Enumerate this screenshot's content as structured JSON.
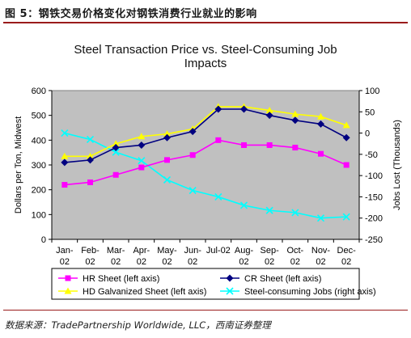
{
  "header": {
    "title": "图 5：钢铁交易价格变化对钢铁消费行业就业的影响"
  },
  "footer": {
    "source": "数据来源：TradePartnership Worldwide, LLC，西南证券整理"
  },
  "colors": {
    "plot_bg": "#c0c0c0",
    "hr_sheet": "#ff00ff",
    "cr_sheet": "#000080",
    "hd_galvanized": "#ffff00",
    "jobs": "#00ffff"
  },
  "chart_data": {
    "type": "line",
    "title_lines": [
      "Steel Transaction Price vs. Steel-Consuming Job",
      "Impacts"
    ],
    "categories": [
      [
        "Jan-",
        "02"
      ],
      [
        "Feb-",
        "02"
      ],
      [
        "Mar-",
        "02"
      ],
      [
        "Apr-",
        "02"
      ],
      [
        "May-",
        "02"
      ],
      [
        "Jun-",
        "02"
      ],
      [
        "Jul-02",
        ""
      ],
      [
        "Aug-",
        "02"
      ],
      [
        "Sep-",
        "02"
      ],
      [
        "Oct-",
        "02"
      ],
      [
        "Nov-",
        "02"
      ],
      [
        "Dec-",
        "02"
      ]
    ],
    "ylabel": "Dollars per Ton, Midwest",
    "y2label": "Jobs Lost (Thousands)",
    "ylim": [
      0,
      600
    ],
    "yticks": [
      0,
      100,
      200,
      300,
      400,
      500,
      600
    ],
    "y2lim": [
      -250,
      100
    ],
    "y2ticks": [
      100,
      50,
      0,
      -50,
      -100,
      -150,
      -200,
      -250
    ],
    "grid": false,
    "legend_position": "bottom",
    "series": [
      {
        "name": "HR Sheet (left axis)",
        "key": "hr",
        "axis": "left",
        "marker": "square",
        "values": [
          220,
          230,
          260,
          290,
          320,
          340,
          400,
          380,
          380,
          370,
          345,
          300
        ]
      },
      {
        "name": "CR Sheet (left axis)",
        "key": "cr",
        "axis": "left",
        "marker": "diamond",
        "values": [
          310,
          320,
          370,
          380,
          410,
          435,
          525,
          525,
          500,
          480,
          465,
          410
        ]
      },
      {
        "name": "HD Galvanized Sheet (left axis)",
        "key": "hd",
        "axis": "left",
        "marker": "triangle",
        "values": [
          335,
          335,
          385,
          415,
          425,
          445,
          535,
          535,
          520,
          505,
          495,
          460
        ]
      },
      {
        "name": "Steel-consuming Jobs (right axis)",
        "key": "jobs",
        "axis": "right",
        "marker": "x",
        "values": [
          0,
          -15,
          -45,
          -65,
          -110,
          -135,
          -150,
          -170,
          -182,
          -187,
          -200,
          -197
        ]
      }
    ]
  }
}
